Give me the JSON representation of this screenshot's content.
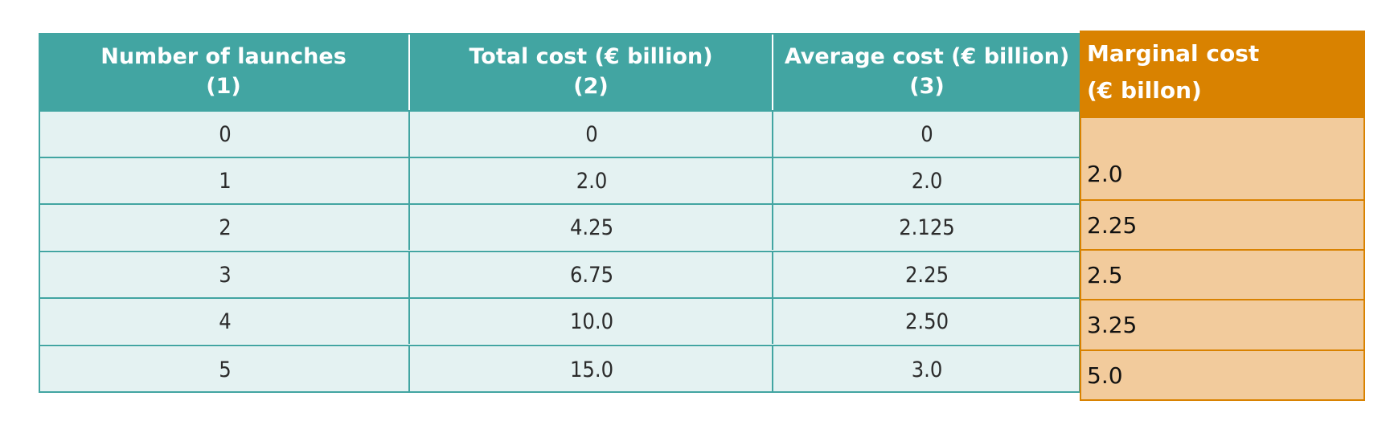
{
  "table": {
    "headers": [
      {
        "line1": "Number of launches",
        "line2": "(1)"
      },
      {
        "line1": "Total cost (€ billion)",
        "line2": "(2)"
      },
      {
        "line1": "Average cost (€ billion)",
        "line2": "(3)"
      }
    ],
    "rows": [
      [
        "0",
        "0",
        "0"
      ],
      [
        "1",
        "2.0",
        "2.0"
      ],
      [
        "2",
        "4.25",
        "2.125"
      ],
      [
        "3",
        "6.75",
        "2.25"
      ],
      [
        "4",
        "10.0",
        "2.50"
      ],
      [
        "5",
        "15.0",
        "3.0"
      ]
    ]
  },
  "marginal": {
    "header_line1": "Marginal cost",
    "header_line2": "(€ billon)",
    "values": [
      "2.0",
      "2.25",
      "2.5",
      "3.25",
      "5.0"
    ]
  },
  "colors": {
    "teal": "#42a5a2",
    "teal_light": "#e4f2f2",
    "orange": "#d98200",
    "orange_light": "#f2cb9c"
  }
}
